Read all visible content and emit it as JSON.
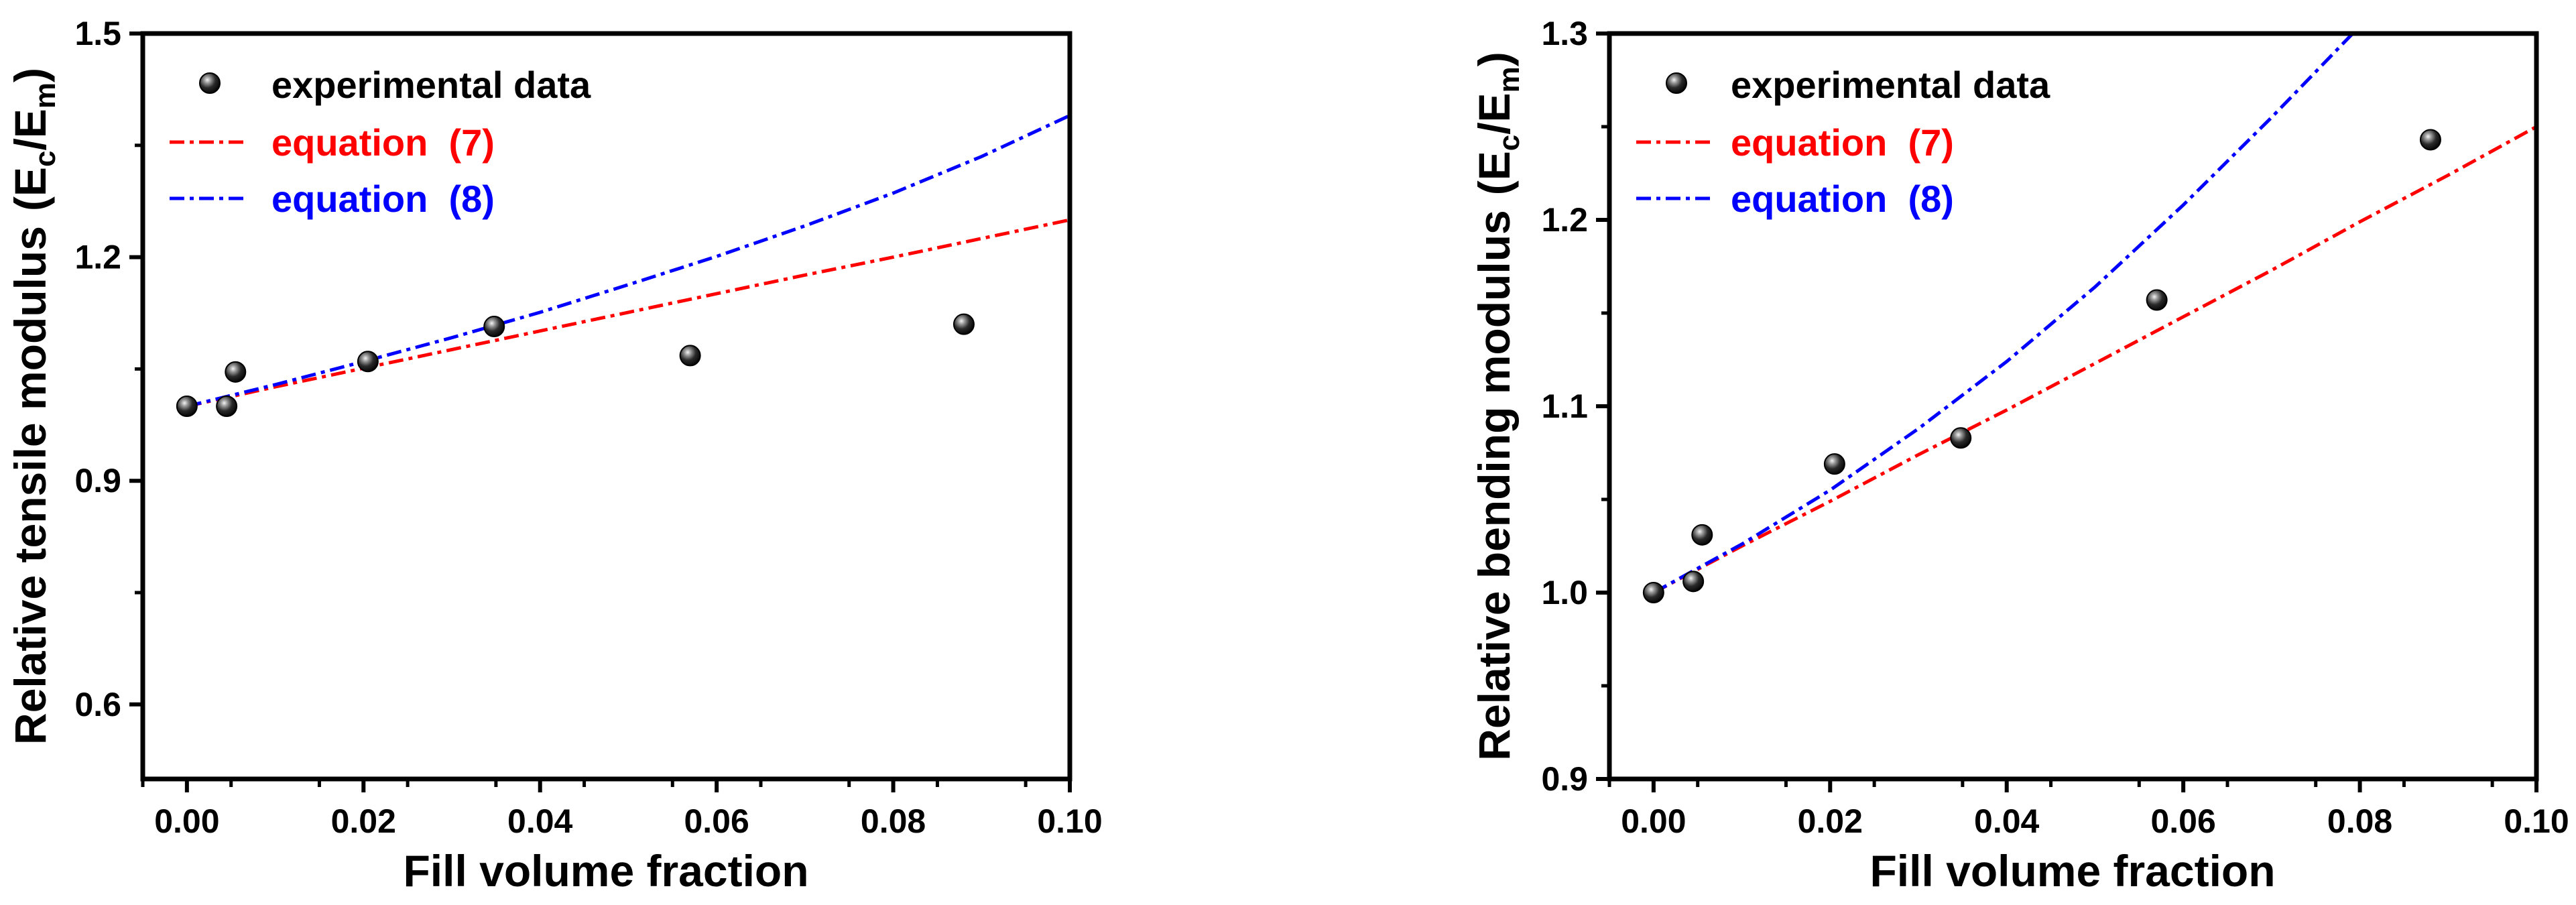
{
  "chart_data": [
    {
      "type": "scatter",
      "xlabel": "Fill volume fraction",
      "ylabel_main": "Relative tensile modulus",
      "ylabel_paren_open": "(",
      "ylabel_E1": "E",
      "ylabel_sub1": "c",
      "ylabel_slash": "/",
      "ylabel_E2": "E",
      "ylabel_sub2": "m",
      "ylabel_paren_close": ")",
      "xlim": [
        -0.005,
        0.1
      ],
      "ylim": [
        0.5,
        1.5
      ],
      "x_ticks": [
        0.0,
        0.02,
        0.04,
        0.06,
        0.08,
        0.1
      ],
      "x_tick_labels": [
        "0.00",
        "0.02",
        "0.04",
        "0.06",
        "0.08",
        "0.10"
      ],
      "y_ticks": [
        0.6,
        0.9,
        1.2,
        1.5
      ],
      "y_tick_labels": [
        "0.6",
        "0.9",
        "1.2",
        "1.5"
      ],
      "grid": false,
      "legend_position": "top-left",
      "series": [
        {
          "name": "experimental data",
          "kind": "points",
          "color": "#000000",
          "x": [
            0.0,
            0.0045,
            0.0055,
            0.0205,
            0.0348,
            0.057,
            0.088
          ],
          "y": [
            1.0,
            1.0,
            1.046,
            1.06,
            1.107,
            1.068,
            1.11
          ]
        },
        {
          "name": "equation  (7)",
          "kind": "line",
          "color": "#ff0000",
          "x": [
            0.0,
            0.01,
            0.02,
            0.03,
            0.04,
            0.05,
            0.06,
            0.07,
            0.08,
            0.09,
            0.1
          ],
          "y": [
            1.0,
            1.026,
            1.051,
            1.076,
            1.101,
            1.126,
            1.151,
            1.176,
            1.2,
            1.225,
            1.25
          ]
        },
        {
          "name": "equation  (8)",
          "kind": "line",
          "color": "#0000ff",
          "x": [
            0.0,
            0.01,
            0.02,
            0.03,
            0.04,
            0.05,
            0.06,
            0.07,
            0.08,
            0.09,
            0.1
          ],
          "y": [
            1.0,
            1.029,
            1.06,
            1.092,
            1.126,
            1.163,
            1.201,
            1.242,
            1.286,
            1.335,
            1.39
          ]
        }
      ]
    },
    {
      "type": "scatter",
      "xlabel": "Fill volume fraction",
      "ylabel_main": "Relative bending modulus",
      "ylabel_paren_open": "(",
      "ylabel_E1": "E",
      "ylabel_sub1": "c",
      "ylabel_slash": "/",
      "ylabel_E2": "E",
      "ylabel_sub2": "m",
      "ylabel_paren_close": ")",
      "xlim": [
        -0.005,
        0.1
      ],
      "ylim": [
        0.9,
        1.3
      ],
      "x_ticks": [
        0.0,
        0.02,
        0.04,
        0.06,
        0.08,
        0.1
      ],
      "x_tick_labels": [
        "0.00",
        "0.02",
        "0.04",
        "0.06",
        "0.08",
        "0.10"
      ],
      "y_ticks": [
        0.9,
        1.0,
        1.1,
        1.2,
        1.3
      ],
      "y_tick_labels": [
        "0.9",
        "1.0",
        "1.1",
        "1.2",
        "1.3"
      ],
      "grid": false,
      "legend_position": "top-left",
      "series": [
        {
          "name": "experimental data",
          "kind": "points",
          "color": "#000000",
          "x": [
            0.0,
            0.0045,
            0.0055,
            0.0205,
            0.0348,
            0.057,
            0.088
          ],
          "y": [
            1.0,
            1.006,
            1.031,
            1.069,
            1.083,
            1.157,
            1.243
          ]
        },
        {
          "name": "equation  (7)",
          "kind": "line",
          "color": "#ff0000",
          "x": [
            0.0,
            0.01,
            0.02,
            0.03,
            0.04,
            0.05,
            0.06,
            0.07,
            0.08,
            0.09,
            0.1
          ],
          "y": [
            1.0,
            1.025,
            1.049,
            1.074,
            1.098,
            1.123,
            1.148,
            1.173,
            1.199,
            1.224,
            1.25
          ]
        },
        {
          "name": "equation  (8)",
          "kind": "line",
          "color": "#0000ff",
          "x": [
            0.0,
            0.01,
            0.02,
            0.03,
            0.04,
            0.05,
            0.06,
            0.07,
            0.08,
            0.081,
            0.082
          ],
          "y": [
            1.0,
            1.026,
            1.055,
            1.088,
            1.124,
            1.164,
            1.208,
            1.255,
            1.304,
            1.31,
            1.315
          ]
        }
      ]
    }
  ]
}
